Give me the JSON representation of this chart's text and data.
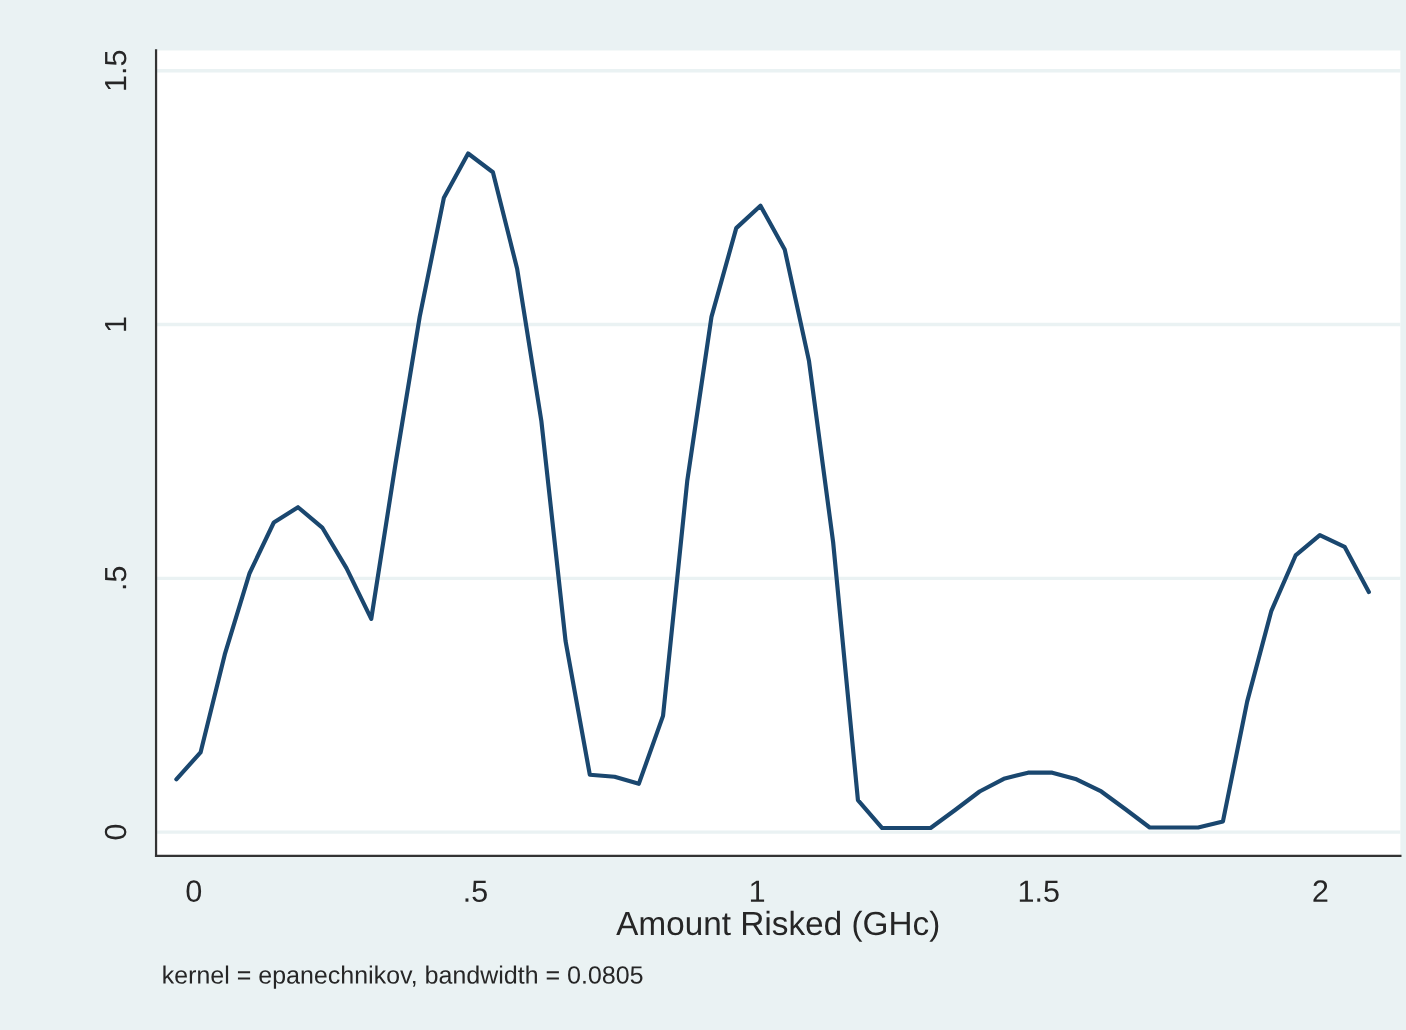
{
  "chart_data": {
    "type": "line",
    "xlabel": "Amount Risked (GHc)",
    "annotations": [
      "kernel = epanechnikov, bandwidth = 0.0805"
    ],
    "series": [
      {
        "color": "#1a476f",
        "x": [
          -0.031,
          0.012,
          0.055,
          0.099,
          0.142,
          0.185,
          0.228,
          0.271,
          0.315,
          0.358,
          0.401,
          0.444,
          0.487,
          0.531,
          0.574,
          0.617,
          0.66,
          0.703,
          0.747,
          0.79,
          0.833,
          0.876,
          0.919,
          0.963,
          1.006,
          1.049,
          1.092,
          1.135,
          1.179,
          1.222,
          1.265,
          1.308,
          1.351,
          1.395,
          1.438,
          1.481,
          1.524,
          1.567,
          1.611,
          1.654,
          1.697,
          1.74,
          1.783,
          1.827,
          1.87,
          1.913,
          1.956,
          1.999,
          2.043,
          2.086
        ],
        "values": [
          0.104,
          0.157,
          0.35,
          0.51,
          0.61,
          0.64,
          0.6,
          0.52,
          0.42,
          0.725,
          1.015,
          1.25,
          1.337,
          1.3,
          1.11,
          0.81,
          0.376,
          0.113,
          0.109,
          0.095,
          0.229,
          0.692,
          1.015,
          1.19,
          1.234,
          1.148,
          0.929,
          0.571,
          0.063,
          0.008,
          0.008,
          0.008,
          0.043,
          0.08,
          0.105,
          0.117,
          0.117,
          0.104,
          0.08,
          0.045,
          0.009,
          0.009,
          0.009,
          0.021,
          0.257,
          0.436,
          0.545,
          0.585,
          0.562,
          0.473
        ]
      }
    ],
    "xlim": [
      -0.067,
      2.142
    ],
    "ylim": [
      -0.047,
      1.54
    ],
    "xticks": [
      0,
      {
        "value": 0.5,
        "label": ".5"
      },
      1,
      1.5,
      2
    ],
    "yticks": [
      0,
      {
        "value": 0.5,
        "label": ".5"
      },
      1,
      1.5
    ],
    "grid": "y",
    "marker": "none",
    "line_style": "solid"
  }
}
